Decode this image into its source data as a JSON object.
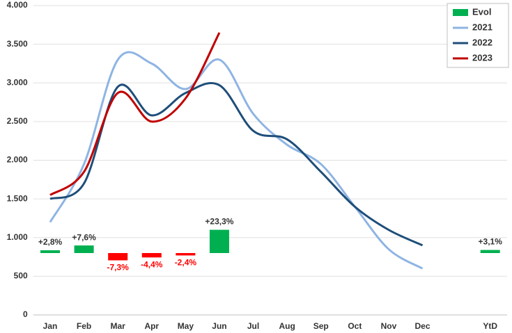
{
  "chart_data": {
    "type": "combo",
    "categories": [
      "Jan",
      "Feb",
      "Mar",
      "Apr",
      "May",
      "Jun",
      "Jul",
      "Aug",
      "Sep",
      "Oct",
      "Nov",
      "Dec",
      null,
      "YtD"
    ],
    "ylim": [
      0,
      4000
    ],
    "yticks": [
      0,
      {
        "value": 500,
        "label": "500"
      },
      {
        "value": 1000,
        "label": "1.000"
      },
      {
        "value": 1500,
        "label": "1.500"
      },
      {
        "value": 2000,
        "label": "2.000"
      },
      {
        "value": 2500,
        "label": "2.500"
      },
      {
        "value": 3000,
        "label": "3.000"
      },
      {
        "value": 3500,
        "label": "3.500"
      },
      {
        "value": 4000,
        "label": "4.000"
      }
    ],
    "y2lim": [
      -62,
      248
    ],
    "grid": true,
    "legend": "top-right",
    "series": [
      {
        "name": "Evol",
        "type": "bar",
        "axis": "y2",
        "color": "#00b050",
        "negative_color": "#ff0000",
        "values": [
          2.8,
          7.6,
          -7.3,
          -4.4,
          -2.4,
          23.3,
          null,
          null,
          null,
          null,
          null,
          null,
          null,
          3.1
        ],
        "value_labels": [
          "+2,8%",
          "+7,6%",
          "-7,3%",
          "-4,4%",
          "-2,4%",
          "+23,3%",
          null,
          null,
          null,
          null,
          null,
          null,
          null,
          "+3,1%"
        ]
      },
      {
        "name": "2021",
        "type": "line",
        "color": "#8eb4e3",
        "values": [
          1200,
          1950,
          3300,
          3250,
          2920,
          3300,
          2600,
          2200,
          1950,
          1400,
          850,
          600,
          null,
          null
        ]
      },
      {
        "name": "2022",
        "type": "line",
        "color": "#1f4e79",
        "values": [
          1500,
          1700,
          2950,
          2580,
          2870,
          2970,
          2380,
          2270,
          1850,
          1400,
          1100,
          900,
          null,
          null
        ]
      },
      {
        "name": "2023",
        "type": "line",
        "color": "#c00000",
        "values": [
          1550,
          1850,
          2870,
          2500,
          2800,
          3650,
          null,
          null,
          null,
          null,
          null,
          null,
          null,
          null
        ]
      }
    ]
  }
}
